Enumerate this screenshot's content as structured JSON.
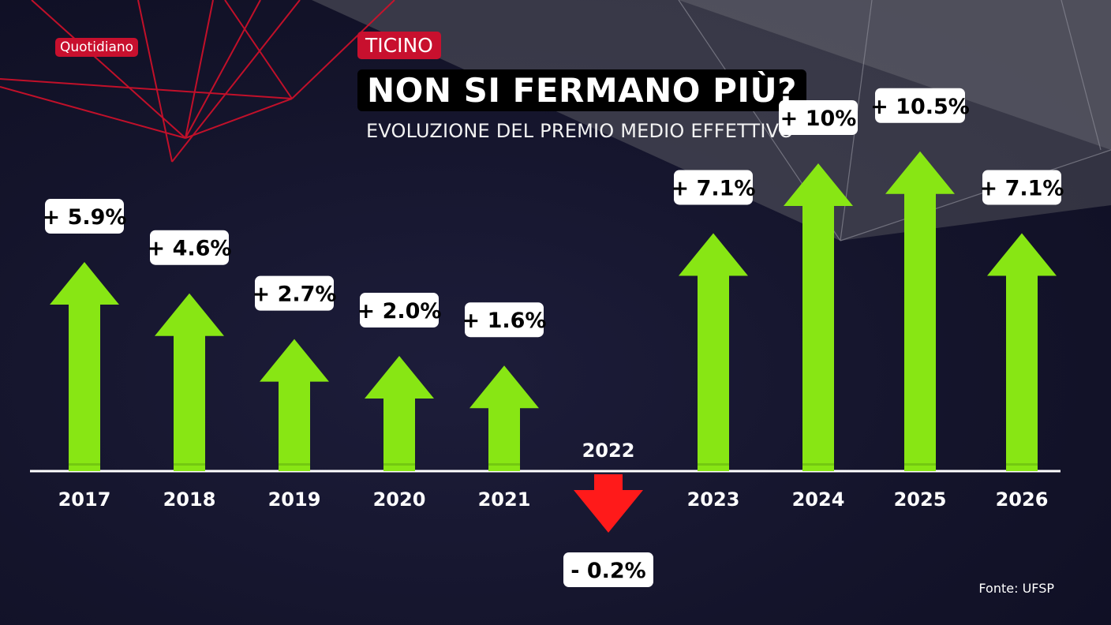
{
  "header": {
    "program_badge": "Quotidiano",
    "region": "TICINO",
    "title": "NON SI FERMANO PIÙ?",
    "subtitle": "EVOLUZIONE DEL PREMIO MEDIO EFFETTIVO"
  },
  "footer": {
    "source": "Fonte: UFSP"
  },
  "colors": {
    "increase": "#88e614",
    "decrease": "#ff1a1a",
    "accent": "#c8102e",
    "baseline": "#ffffff",
    "label_bg": "#ffffff",
    "label_text": "#000000"
  },
  "chart_data": {
    "type": "bar",
    "categories": [
      "2017",
      "2018",
      "2019",
      "2020",
      "2021",
      "2022",
      "2023",
      "2024",
      "2025",
      "2026"
    ],
    "values": [
      5.9,
      4.6,
      2.7,
      2.0,
      1.6,
      -0.2,
      7.1,
      10,
      10.5,
      7.1
    ],
    "data_labels": [
      "+ 5.9%",
      "+ 4.6%",
      "+ 2.7%",
      "+ 2.0%",
      "+ 1.6%",
      "- 0.2%",
      "+ 7.1%",
      "+ 10%",
      "+ 10.5%",
      "+ 7.1%"
    ],
    "unit": "%",
    "title": "EVOLUZIONE DEL PREMIO MEDIO EFFETTIVO",
    "grid": false
  }
}
